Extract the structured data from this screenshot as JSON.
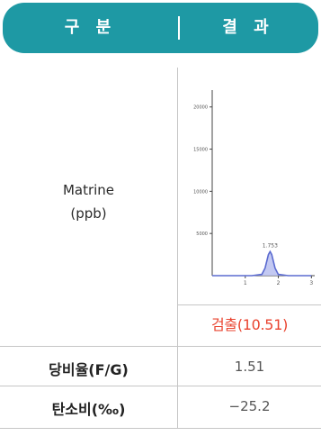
{
  "header": {
    "col1": "구 분",
    "col2": "결 과"
  },
  "sample": {
    "name": "Matrine",
    "unit": "(ppb)",
    "result": "검출(10.51)"
  },
  "rows": [
    {
      "label": "당비율(F/G)",
      "value": "1.51"
    },
    {
      "label": "탄소비(‰)",
      "value": "−25.2"
    }
  ],
  "chart_data": {
    "type": "line",
    "title": "",
    "xlabel": "",
    "ylabel": "",
    "xlim": [
      0,
      3.1
    ],
    "ylim": [
      0,
      22000
    ],
    "x_ticks": [
      "1",
      "2",
      "3"
    ],
    "y_ticks": [
      "5000",
      "10000",
      "15000",
      "20000"
    ],
    "peak_label": "1.753",
    "series": [
      {
        "x": [
          0,
          0.3,
          0.6,
          0.9,
          1.2,
          1.5,
          1.6,
          1.7,
          1.75,
          1.8,
          1.9,
          2.0,
          2.3,
          2.6,
          3.0
        ],
        "y": [
          0,
          0,
          0,
          0,
          0,
          150,
          900,
          2500,
          2850,
          2500,
          900,
          150,
          0,
          0,
          0
        ]
      }
    ],
    "colors": {
      "line": "#5b6bd0",
      "fill": "#b9bff0"
    },
    "grid": false
  }
}
